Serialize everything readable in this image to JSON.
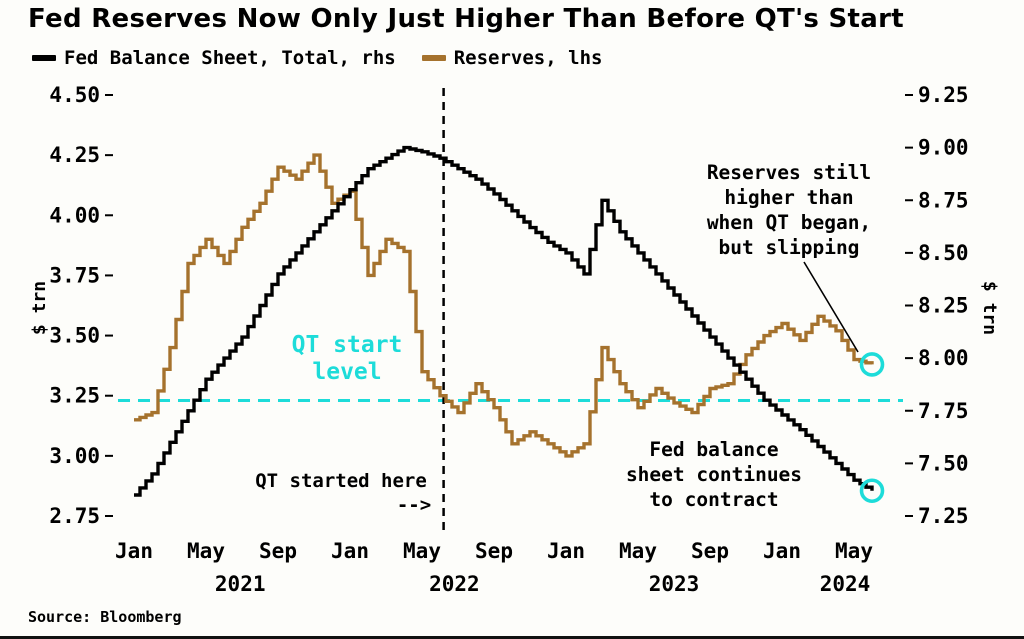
{
  "title": "Fed Reserves Now Only Just Higher Than Before QT's Start",
  "source": "Source: Bloomberg",
  "legend": [
    {
      "label": "Fed Balance Sheet, Total, rhs",
      "color": "#000000"
    },
    {
      "label": "Reserves, lhs",
      "color": "#A5722D"
    }
  ],
  "chart_data": {
    "type": "line",
    "style": "step",
    "x": [
      "Jan 2021",
      "Feb 2021",
      "Mar 2021",
      "Apr 2021",
      "May 2021",
      "Jun 2021",
      "Jul 2021",
      "Aug 2021",
      "Sep 2021",
      "Oct 2021",
      "Nov 2021",
      "Dec 2021",
      "Jan 2022",
      "Feb 2022",
      "Mar 2022",
      "Apr 2022",
      "May 2022",
      "Jun 2022",
      "Jul 2022",
      "Aug 2022",
      "Sep 2022",
      "Oct 2022",
      "Nov 2022",
      "Dec 2022",
      "Jan 2023",
      "Feb 2023",
      "Mar 2023",
      "Apr 2023",
      "May 2023",
      "Jun 2023",
      "Jul 2023",
      "Aug 2023",
      "Sep 2023",
      "Oct 2023",
      "Nov 2023",
      "Dec 2023",
      "Jan 2024",
      "Feb 2024",
      "Mar 2024",
      "Apr 2024",
      "May 2024",
      "Jun 2024"
    ],
    "series": [
      {
        "name": "Fed Balance Sheet, Total",
        "axis": "rhs",
        "color": "#000000",
        "values": [
          7.35,
          7.45,
          7.6,
          7.75,
          7.9,
          8.0,
          8.1,
          8.25,
          8.4,
          8.5,
          8.6,
          8.7,
          8.8,
          8.9,
          8.95,
          9.0,
          8.98,
          8.95,
          8.9,
          8.85,
          8.78,
          8.7,
          8.62,
          8.55,
          8.5,
          8.4,
          8.75,
          8.6,
          8.5,
          8.4,
          8.3,
          8.2,
          8.1,
          8.0,
          7.9,
          7.8,
          7.73,
          7.66,
          7.58,
          7.5,
          7.42,
          7.37
        ]
      },
      {
        "name": "Reserves",
        "axis": "lhs",
        "color": "#A5722D",
        "values": [
          3.15,
          3.18,
          3.45,
          3.8,
          3.9,
          3.8,
          3.95,
          4.05,
          4.2,
          4.15,
          4.25,
          4.05,
          4.1,
          3.75,
          3.9,
          3.85,
          3.35,
          3.25,
          3.18,
          3.3,
          3.2,
          3.05,
          3.1,
          3.05,
          3.0,
          3.05,
          3.45,
          3.3,
          3.2,
          3.28,
          3.22,
          3.18,
          3.28,
          3.3,
          3.42,
          3.5,
          3.55,
          3.48,
          3.58,
          3.52,
          3.4,
          3.38
        ]
      }
    ],
    "left_axis": {
      "label": "$ trn",
      "min": 2.75,
      "max": 4.5,
      "ticks": [
        "4.50",
        "4.25",
        "4.00",
        "3.75",
        "3.50",
        "3.25",
        "3.00",
        "2.75"
      ]
    },
    "right_axis": {
      "label": "$ trn",
      "min": 7.25,
      "max": 9.25,
      "ticks": [
        "9.25",
        "9.00",
        "8.75",
        "8.50",
        "8.25",
        "8.00",
        "7.75",
        "7.50",
        "7.25"
      ]
    },
    "x_ticks": [
      {
        "index": 0,
        "label": "Jan"
      },
      {
        "index": 4,
        "label": "May"
      },
      {
        "index": 8,
        "label": "Sep"
      },
      {
        "index": 12,
        "label": "Jan"
      },
      {
        "index": 16,
        "label": "May"
      },
      {
        "index": 20,
        "label": "Sep"
      },
      {
        "index": 24,
        "label": "Jan"
      },
      {
        "index": 28,
        "label": "May"
      },
      {
        "index": 32,
        "label": "Sep"
      },
      {
        "index": 36,
        "label": "Jan"
      },
      {
        "index": 40,
        "label": "May"
      }
    ],
    "year_labels": [
      {
        "index": 5.9,
        "label": "2021"
      },
      {
        "index": 17.8,
        "label": "2022"
      },
      {
        "index": 30.0,
        "label": "2023"
      },
      {
        "index": 39.5,
        "label": "2024"
      }
    ],
    "annotations": {
      "qt_start_level": 3.23,
      "qt_start_month_index": 17.2,
      "qt_level_note": [
        "QT start",
        "level"
      ],
      "qt_started_note": "QT started here",
      "qt_arrow": "-->",
      "reserves_note": [
        "Reserves still",
        "higher than",
        "when QT began,",
        "but slipping"
      ],
      "balance_note": [
        "Fed balance",
        "sheet continues",
        "to contract"
      ]
    },
    "colors": {
      "cyan": "#1DDCD9",
      "brown": "#A5722D",
      "black": "#000000"
    },
    "legend_position": "top-left",
    "grid": false
  }
}
